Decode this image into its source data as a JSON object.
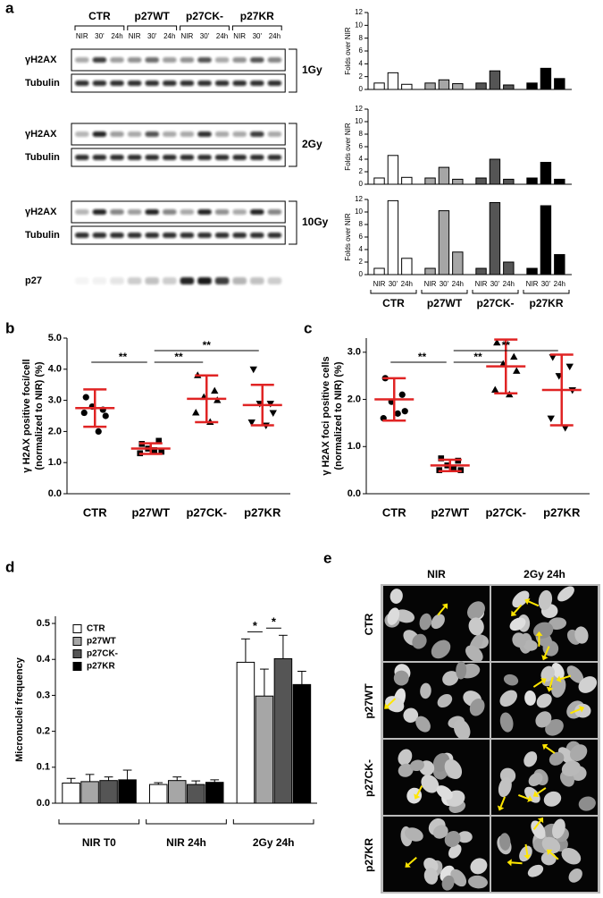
{
  "panel_labels": [
    "a",
    "b",
    "c",
    "d",
    "e"
  ],
  "blot": {
    "groups": [
      {
        "name": "CTR",
        "lanes": [
          "NIR",
          "30'",
          "24h"
        ]
      },
      {
        "name": "p27WT",
        "lanes": [
          "NIR",
          "30'",
          "24h"
        ]
      },
      {
        "name": "p27CK-",
        "lanes": [
          "NIR",
          "30'",
          "24h"
        ]
      },
      {
        "name": "p27KR",
        "lanes": [
          "NIR",
          "30'",
          "24h"
        ]
      }
    ],
    "doses": [
      {
        "dose": "1Gy",
        "rows": [
          "γH2AX",
          "Tubulin"
        ]
      },
      {
        "dose": "2Gy",
        "rows": [
          "γH2AX",
          "Tubulin"
        ]
      },
      {
        "dose": "10Gy",
        "rows": [
          "γH2AX",
          "Tubulin"
        ]
      }
    ],
    "p27_row": "p27"
  },
  "chart_data": [
    {
      "type": "bar",
      "ylabel": "Folds over NIR",
      "ylim": [
        0,
        12
      ],
      "yticks": [
        0,
        2,
        4,
        6,
        8,
        10,
        12
      ],
      "series": [
        {
          "color": "#ffffff",
          "values": [
            1,
            2.6,
            0.8
          ]
        },
        {
          "color": "#a6a6a6",
          "values": [
            1,
            1.5,
            0.9
          ]
        },
        {
          "color": "#555555",
          "values": [
            1,
            2.9,
            0.7
          ]
        },
        {
          "color": "#000000",
          "values": [
            1,
            3.3,
            1.7
          ]
        }
      ]
    },
    {
      "type": "bar",
      "ylabel": "Folds over NIR",
      "ylim": [
        0,
        12
      ],
      "yticks": [
        0,
        2,
        4,
        6,
        8,
        10,
        12
      ],
      "series": [
        {
          "color": "#ffffff",
          "values": [
            1,
            4.6,
            1.1
          ]
        },
        {
          "color": "#a6a6a6",
          "values": [
            1,
            2.7,
            0.8
          ]
        },
        {
          "color": "#555555",
          "values": [
            1,
            4.0,
            0.8
          ]
        },
        {
          "color": "#000000",
          "values": [
            1,
            3.5,
            0.8
          ]
        }
      ]
    },
    {
      "type": "bar",
      "ylabel": "Folds over NIR",
      "ylim": [
        0,
        12
      ],
      "yticks": [
        0,
        2,
        4,
        6,
        8,
        10,
        12
      ],
      "categories": [
        "NIR",
        "30'",
        "24h"
      ],
      "series": [
        {
          "name": "CTR",
          "color": "#ffffff",
          "values": [
            1,
            11.8,
            2.6
          ]
        },
        {
          "name": "p27WT",
          "color": "#a6a6a6",
          "values": [
            1,
            10.2,
            3.6
          ]
        },
        {
          "name": "p27CK-",
          "color": "#555555",
          "values": [
            1,
            11.5,
            2.0
          ]
        },
        {
          "name": "p27KR",
          "color": "#000000",
          "values": [
            1,
            11.0,
            3.2
          ]
        }
      ]
    },
    {
      "type": "dotplot",
      "ylabel": [
        "γ H2AX positive foci/cell",
        "(normalized to NIR) (%)"
      ],
      "categories": [
        "CTR",
        "p27WT",
        "p27CK-",
        "p27KR"
      ],
      "points": [
        [
          3.1,
          2.7,
          2.8,
          2.5,
          2.6,
          2.0
        ],
        [
          1.6,
          1.7,
          1.45,
          1.35,
          1.3,
          1.4
        ],
        [
          3.8,
          3.3,
          3.1,
          3.0,
          2.6,
          2.3
        ],
        [
          4.0,
          2.9,
          2.9,
          2.6,
          2.3,
          2.2
        ]
      ],
      "markers": [
        "circle",
        "square",
        "triangle-up",
        "triangle-down"
      ],
      "mean": [
        2.75,
        1.45,
        3.05,
        2.85
      ],
      "sd": [
        0.6,
        0.17,
        0.75,
        0.65
      ],
      "point_color": "#000000",
      "summary_color": "#e02424",
      "ylim": [
        0,
        5
      ],
      "yticks": [
        {
          "value": 0,
          "label": "0.0"
        },
        {
          "value": 1,
          "label": "1.0"
        },
        {
          "value": 2,
          "label": "2.0"
        },
        {
          "value": 3,
          "label": "3.0"
        },
        {
          "value": 4,
          "label": "4.0"
        },
        {
          "value": 5,
          "label": "5.0"
        }
      ],
      "significance": [
        {
          "pair": [
            "CTR",
            "p27WT"
          ],
          "label": "**"
        },
        {
          "pair": [
            "p27WT",
            "p27CK-"
          ],
          "label": "**"
        },
        {
          "pair": [
            "p27WT",
            "p27KR"
          ],
          "label": "**"
        }
      ]
    },
    {
      "type": "dotplot",
      "ylabel": [
        "γ H2AX foci positive cells",
        "(normalized to NIR) (%)"
      ],
      "categories": [
        "CTR",
        "p27WT",
        "p27CK-",
        "p27KR"
      ],
      "points": [
        [
          2.45,
          2.1,
          1.95,
          1.75,
          1.6,
          1.7
        ],
        [
          0.75,
          0.7,
          0.6,
          0.5,
          0.5,
          0.55
        ],
        [
          3.2,
          2.9,
          2.75,
          2.6,
          2.2,
          2.1
        ],
        [
          2.9,
          2.7,
          2.5,
          2.2,
          1.6,
          1.4
        ]
      ],
      "markers": [
        "circle",
        "square",
        "triangle-up",
        "triangle-down"
      ],
      "mean": [
        2.0,
        0.6,
        2.7,
        2.2
      ],
      "sd": [
        0.45,
        0.12,
        0.57,
        0.75
      ],
      "point_color": "#000000",
      "summary_color": "#e02424",
      "ylim": [
        0,
        3.3
      ],
      "yticks": [
        {
          "value": 0,
          "label": "0.0"
        },
        {
          "value": 1,
          "label": "1.0"
        },
        {
          "value": 2,
          "label": "2.0"
        },
        {
          "value": 3,
          "label": "3.0"
        }
      ],
      "significance": [
        {
          "pair": [
            "CTR",
            "p27WT"
          ],
          "label": "**"
        },
        {
          "pair": [
            "p27WT",
            "p27CK-"
          ],
          "label": "**"
        },
        {
          "pair": [
            "p27WT",
            "p27KR"
          ],
          "label": "**"
        }
      ]
    },
    {
      "type": "grouped_bar",
      "ylabel": "Micronuclei frequency",
      "categories": [
        "NIR T0",
        "NIR 24h",
        "2Gy 24h"
      ],
      "series": [
        {
          "name": "CTR",
          "color": "#ffffff",
          "values": [
            0.056,
            0.052,
            0.392
          ],
          "errors": [
            0.013,
            0.005,
            0.065
          ]
        },
        {
          "name": "p27WT",
          "color": "#a6a6a6",
          "values": [
            0.06,
            0.063,
            0.298
          ],
          "errors": [
            0.02,
            0.01,
            0.075
          ]
        },
        {
          "name": "p27CK-",
          "color": "#555555",
          "values": [
            0.063,
            0.052,
            0.402
          ],
          "errors": [
            0.01,
            0.01,
            0.065
          ]
        },
        {
          "name": "p27KR",
          "color": "#000000",
          "values": [
            0.065,
            0.058,
            0.33
          ],
          "errors": [
            0.027,
            0.007,
            0.037
          ]
        }
      ],
      "ylim": [
        0,
        0.52
      ],
      "yticks": [
        {
          "value": 0,
          "label": "0.0"
        },
        0.1,
        0.2,
        0.3,
        0.4,
        0.5
      ],
      "legend": "upper left",
      "significance": [
        {
          "category": "2Gy 24h",
          "pair": [
            "CTR",
            "p27WT"
          ],
          "label": "*"
        },
        {
          "category": "2Gy 24h",
          "pair": [
            "p27WT",
            "p27CK-"
          ],
          "label": "*"
        }
      ]
    }
  ],
  "micrographs": {
    "columns": [
      "NIR",
      "2Gy 24h"
    ],
    "rows": [
      "CTR",
      "p27WT",
      "p27CK-",
      "p27KR"
    ]
  }
}
